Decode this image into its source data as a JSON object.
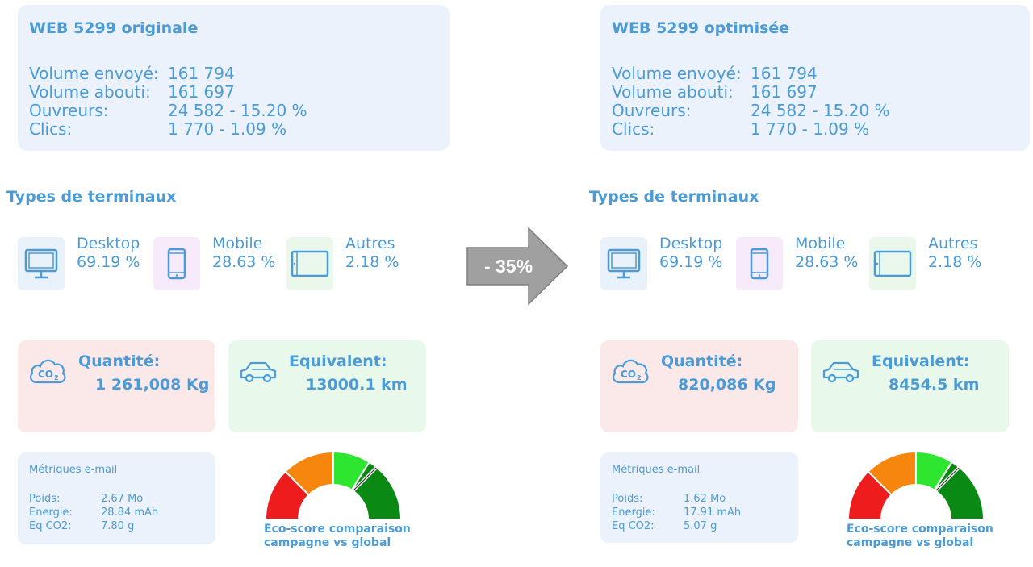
{
  "colors": {
    "text_blue": "#4a9bd6",
    "summary_bg": "#ebf2fb",
    "co2_bg": "#fbe9ea",
    "eq_bg": "#e8f8ea",
    "gauge_red": "#ee1c1c",
    "gauge_orange": "#f7860e",
    "gauge_light_green": "#2ee630",
    "gauge_dark_green": "#0a8a14",
    "arrow_gray": "#a0a0a0"
  },
  "arrow": {
    "label": "- 35%"
  },
  "panels": [
    {
      "title": "WEB 5299 originale",
      "stats": [
        {
          "label": "Volume envoyé:",
          "value": "161 794"
        },
        {
          "label": "Volume abouti:",
          "value": "161 697"
        },
        {
          "label": "Ouvreurs:",
          "value": "24 582 - 15.20 %"
        },
        {
          "label": "Clics:",
          "value": "1 770 - 1.09 %"
        }
      ],
      "terminals_title": "Types de terminaux",
      "terminals": [
        {
          "icon": "desktop-icon",
          "label": "Desktop",
          "value": "69.19 %"
        },
        {
          "icon": "mobile-icon",
          "label": "Mobile",
          "value": "28.63 %"
        },
        {
          "icon": "tablet-icon",
          "label": "Autres",
          "value": "2.18 %"
        }
      ],
      "co2": {
        "icon": "co2-cloud-icon",
        "label": "Quantité:",
        "value": "1 261,008 Kg"
      },
      "equivalent": {
        "icon": "car-icon",
        "label": "Equivalent:",
        "value": "13000.1 km"
      },
      "metrics": {
        "title": "Métriques e-mail",
        "rows": [
          {
            "label": "Poids:",
            "value": "2.67 Mo"
          },
          {
            "label": "Energie:",
            "value": "28.84 mAh"
          },
          {
            "label": "Eq CO2:",
            "value": "7.80 g"
          }
        ]
      },
      "gauge": {
        "caption_line1": "Eco-score comparaison",
        "caption_line2": "campagne vs global"
      }
    },
    {
      "title": "WEB 5299 optimisée",
      "stats": [
        {
          "label": "Volume envoyé:",
          "value": "161 794"
        },
        {
          "label": "Volume abouti:",
          "value": "161 697"
        },
        {
          "label": "Ouvreurs:",
          "value": "24 582 - 15.20 %"
        },
        {
          "label": "Clics:",
          "value": "1 770 - 1.09 %"
        }
      ],
      "terminals_title": "Types de terminaux",
      "terminals": [
        {
          "icon": "desktop-icon",
          "label": "Desktop",
          "value": "69.19 %"
        },
        {
          "icon": "mobile-icon",
          "label": "Mobile",
          "value": "28.63 %"
        },
        {
          "icon": "tablet-icon",
          "label": "Autres",
          "value": "2.18 %"
        }
      ],
      "co2": {
        "icon": "co2-cloud-icon",
        "label": "Quantité:",
        "value": "820,086 Kg"
      },
      "equivalent": {
        "icon": "car-icon",
        "label": "Equivalent:",
        "value": "8454.5 km"
      },
      "metrics": {
        "title": "Métriques e-mail",
        "rows": [
          {
            "label": "Poids:",
            "value": "1.62 Mo"
          },
          {
            "label": "Energie:",
            "value": "17.91 mAh"
          },
          {
            "label": "Eq CO2:",
            "value": "5.07 g"
          }
        ]
      },
      "gauge": {
        "caption_line1": "Eco-score comparaison",
        "caption_line2": "campagne vs global"
      }
    }
  ]
}
